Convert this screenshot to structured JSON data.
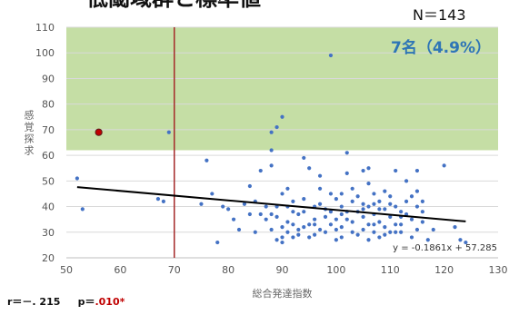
{
  "title": "低閾域群と標準値",
  "n_label": "N＝143",
  "stats": {
    "r": "r＝－. 215",
    "p_prefix": "p＝",
    "p_value": ".010*"
  },
  "chart_data": {
    "type": "scatter",
    "title": "",
    "xlabel": "総合発達指数",
    "ylabel": "感覚探求",
    "xlim": [
      50,
      130
    ],
    "ylim": [
      20,
      110
    ],
    "xticks": [
      50,
      60,
      70,
      80,
      90,
      100,
      110,
      120,
      130
    ],
    "yticks": [
      20,
      30,
      40,
      50,
      60,
      70,
      80,
      90,
      100,
      110
    ],
    "grid": "horizontal",
    "point_color": "#4472c4",
    "highlight_band": {
      "y_from": 62,
      "y_to": 110,
      "color": "#c5dea5"
    },
    "vline": {
      "x": 70,
      "color": "#a52a2a"
    },
    "band_annotation": "7名（4.9%）",
    "trendline": {
      "slope": -0.1861,
      "intercept": 57.285,
      "x_from": 52,
      "x_to": 124,
      "equation": "y = -0.1861x + 57.285"
    },
    "highlight_point": {
      "x": 56,
      "y": 69,
      "color": "#c00000"
    },
    "points": [
      [
        52,
        51
      ],
      [
        53,
        39
      ],
      [
        67,
        43
      ],
      [
        68,
        42
      ],
      [
        69,
        69
      ],
      [
        75,
        41
      ],
      [
        76,
        58
      ],
      [
        77,
        45
      ],
      [
        78,
        26
      ],
      [
        79,
        40
      ],
      [
        80,
        39
      ],
      [
        81,
        35
      ],
      [
        82,
        31
      ],
      [
        83,
        41
      ],
      [
        84,
        48
      ],
      [
        85,
        42
      ],
      [
        85,
        30
      ],
      [
        86,
        54
      ],
      [
        86,
        37
      ],
      [
        87,
        40
      ],
      [
        87,
        35
      ],
      [
        88,
        31
      ],
      [
        88,
        56
      ],
      [
        88,
        62
      ],
      [
        88,
        69
      ],
      [
        88,
        37
      ],
      [
        89,
        40
      ],
      [
        89,
        36
      ],
      [
        89,
        27
      ],
      [
        89,
        71
      ],
      [
        90,
        75
      ],
      [
        90,
        45
      ],
      [
        90,
        32
      ],
      [
        90,
        28
      ],
      [
        90,
        26
      ],
      [
        91,
        47
      ],
      [
        91,
        40
      ],
      [
        91,
        34
      ],
      [
        91,
        30
      ],
      [
        92,
        42
      ],
      [
        92,
        33
      ],
      [
        93,
        37
      ],
      [
        93,
        29
      ],
      [
        94,
        59
      ],
      [
        94,
        38
      ],
      [
        94,
        43
      ],
      [
        95,
        55
      ],
      [
        95,
        28
      ],
      [
        96,
        35
      ],
      [
        97,
        31
      ],
      [
        97,
        41
      ],
      [
        97,
        47
      ],
      [
        98,
        39
      ],
      [
        98,
        30
      ],
      [
        99,
        99
      ],
      [
        99,
        38
      ],
      [
        100,
        43
      ],
      [
        100,
        35
      ],
      [
        100,
        27
      ],
      [
        101,
        45
      ],
      [
        101,
        40
      ],
      [
        101,
        32
      ],
      [
        101,
        28
      ],
      [
        102,
        61
      ],
      [
        102,
        53
      ],
      [
        102,
        38
      ],
      [
        103,
        30
      ],
      [
        103,
        42
      ],
      [
        103,
        34
      ],
      [
        104,
        29
      ],
      [
        105,
        54
      ],
      [
        105,
        41
      ],
      [
        105,
        36
      ],
      [
        105,
        31
      ],
      [
        106,
        55
      ],
      [
        106,
        49
      ],
      [
        106,
        40
      ],
      [
        106,
        33
      ],
      [
        106,
        27
      ],
      [
        107,
        45
      ],
      [
        107,
        37
      ],
      [
        107,
        30
      ],
      [
        108,
        28
      ],
      [
        108,
        34
      ],
      [
        108,
        42
      ],
      [
        109,
        39
      ],
      [
        109,
        32
      ],
      [
        110,
        30
      ],
      [
        110,
        44
      ],
      [
        110,
        36
      ],
      [
        111,
        54
      ],
      [
        111,
        40
      ],
      [
        111,
        33
      ],
      [
        112,
        36
      ],
      [
        112,
        30
      ],
      [
        112,
        38
      ],
      [
        113,
        50
      ],
      [
        113,
        42
      ],
      [
        114,
        35
      ],
      [
        114,
        28
      ],
      [
        115,
        54
      ],
      [
        115,
        46
      ],
      [
        115,
        40
      ],
      [
        116,
        34
      ],
      [
        116,
        38
      ],
      [
        117,
        27
      ],
      [
        118,
        31
      ],
      [
        120,
        56
      ],
      [
        122,
        32
      ],
      [
        123,
        27
      ],
      [
        124,
        26
      ],
      [
        96,
        40
      ],
      [
        96,
        33
      ],
      [
        104,
        38
      ],
      [
        104,
        44
      ],
      [
        103,
        47
      ],
      [
        109,
        46
      ],
      [
        111,
        30
      ],
      [
        99,
        45
      ],
      [
        97,
        52
      ],
      [
        92,
        38
      ],
      [
        93,
        31
      ],
      [
        95,
        33
      ],
      [
        98,
        36
      ],
      [
        100,
        31
      ],
      [
        102,
        35
      ],
      [
        107,
        33
      ],
      [
        108,
        39
      ],
      [
        110,
        41
      ],
      [
        113,
        37
      ],
      [
        114,
        44
      ],
      [
        116,
        42
      ],
      [
        92,
        28
      ],
      [
        94,
        32
      ],
      [
        96,
        29
      ],
      [
        99,
        33
      ],
      [
        101,
        37
      ],
      [
        105,
        39
      ],
      [
        107,
        41
      ],
      [
        109,
        29
      ],
      [
        112,
        33
      ],
      [
        115,
        31
      ],
      [
        84,
        37
      ]
    ]
  }
}
